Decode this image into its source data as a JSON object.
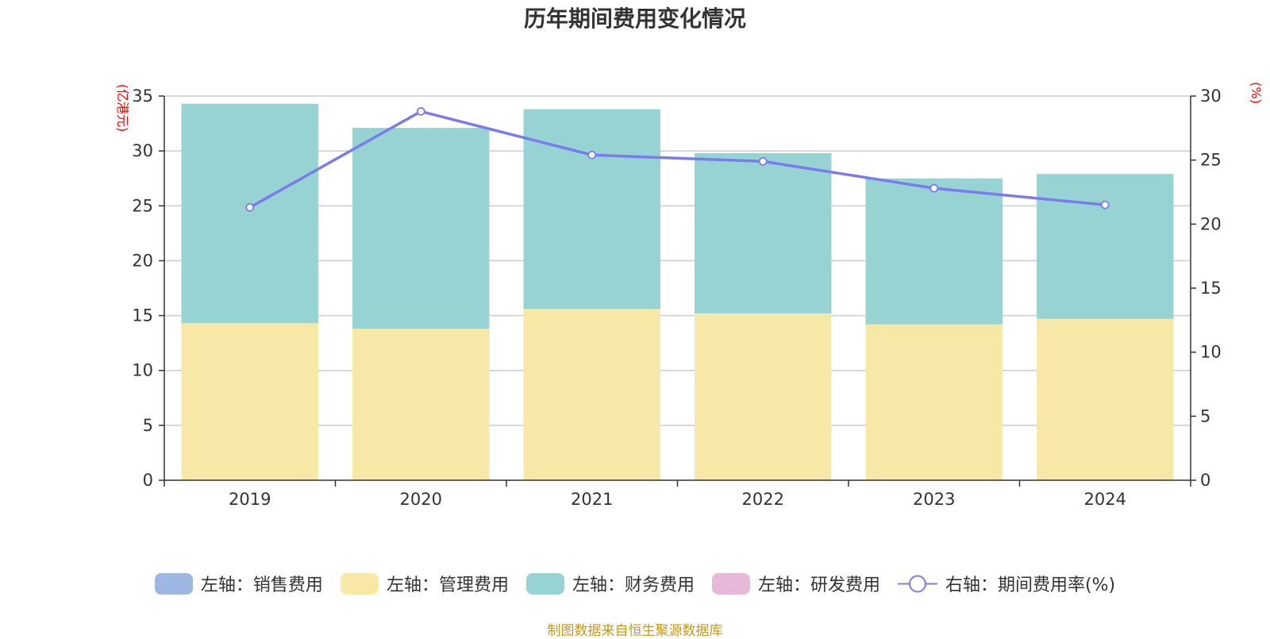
{
  "chart_data": {
    "type": "bar",
    "title": "历年期间费用变化情况",
    "categories": [
      "2019",
      "2020",
      "2021",
      "2022",
      "2023",
      "2024"
    ],
    "series": [
      {
        "name": "左轴：销售费用",
        "type": "bar",
        "axis": "left",
        "color": "#9db7e2",
        "values": [
          0,
          0,
          0,
          0,
          0,
          0
        ]
      },
      {
        "name": "左轴：管理费用",
        "type": "bar",
        "axis": "left",
        "color": "#f8e8a8",
        "values": [
          14.3,
          13.8,
          15.6,
          15.2,
          14.2,
          14.7
        ]
      },
      {
        "name": "左轴：财务费用",
        "type": "bar",
        "axis": "left",
        "color": "#98d3d4",
        "values": [
          20.0,
          18.3,
          18.2,
          14.6,
          13.3,
          13.2
        ]
      },
      {
        "name": "左轴：研发费用",
        "type": "bar",
        "axis": "left",
        "color": "#e8b8d9",
        "values": [
          0,
          0,
          0,
          0,
          0,
          0
        ]
      },
      {
        "name": "右轴：期间费用率(%)",
        "type": "line",
        "axis": "right",
        "color": "#7b7bef",
        "values": [
          21.3,
          28.8,
          25.4,
          24.9,
          22.8,
          21.5
        ]
      }
    ],
    "y_left": {
      "label": "(亿港元)",
      "min": 0,
      "max": 35,
      "ticks": [
        0,
        5,
        10,
        15,
        20,
        25,
        30,
        35
      ]
    },
    "y_right": {
      "label": "(%)",
      "min": 0,
      "max": 30,
      "ticks": [
        0,
        5,
        10,
        15,
        20,
        25,
        30
      ]
    },
    "stacked": true,
    "grid": true,
    "legend_position": "bottom"
  },
  "footer": "制图数据来自恒生聚源数据库"
}
